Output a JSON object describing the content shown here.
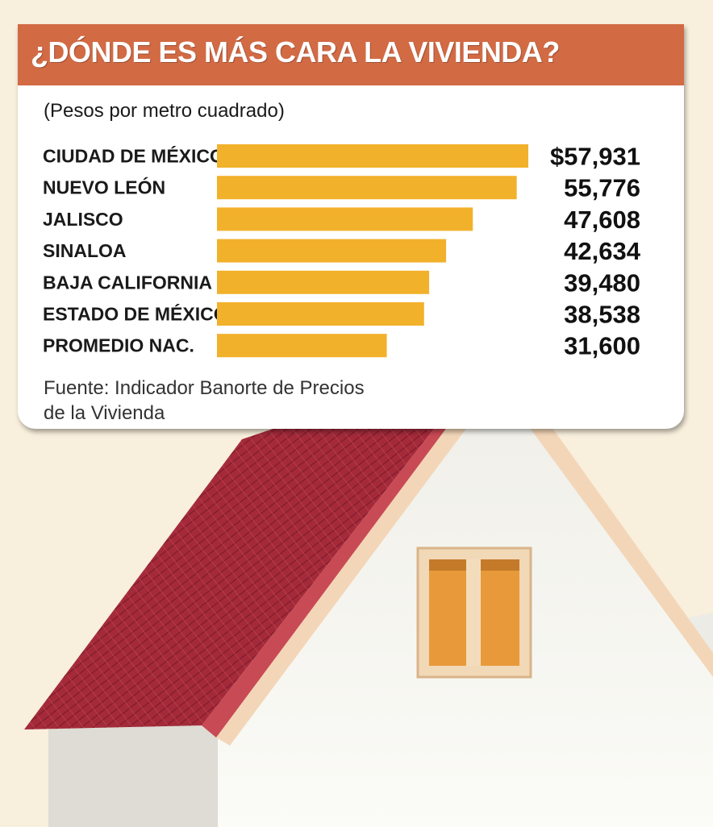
{
  "chart_data": {
    "type": "bar",
    "orientation": "horizontal",
    "title": "¿DÓNDE ES MÁS CARA LA VIVIENDA?",
    "subtitle": "(Pesos por metro cuadrado)",
    "categories": [
      "CIUDAD DE MÉXICO",
      "NUEVO LEÓN",
      "JALISCO",
      "SINALOA",
      "BAJA CALIFORNIA",
      "ESTADO DE MÉXICO",
      "PROMEDIO NAC."
    ],
    "values": [
      57931,
      55776,
      47608,
      42634,
      39480,
      38538,
      31600
    ],
    "value_labels": [
      "$57,931",
      "55,776",
      "47,608",
      "42,634",
      "39,480",
      "38,538",
      "31,600"
    ],
    "source": "Fuente: Indicador Banorte de Precios de la Vivienda",
    "xlim": [
      0,
      57931
    ],
    "grid": false,
    "legend": "none"
  },
  "colors": {
    "bar": "#f2b12b",
    "title_bar": "#d26a44",
    "card": "#ffffff",
    "background": "#f8efdc",
    "roof": "#a42a3a",
    "wall": "#f6f6f1",
    "window": "#e89a3a"
  },
  "illustration": {
    "icon": "house-icon"
  }
}
